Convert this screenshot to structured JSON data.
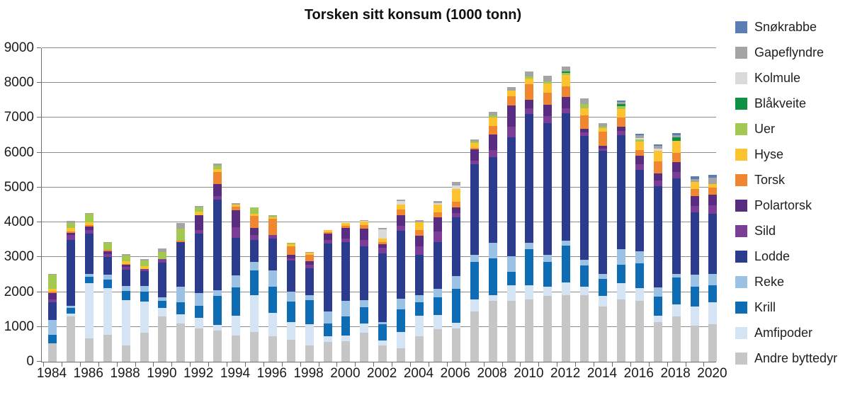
{
  "title": "Torsken sitt konsum (1000 tonn)",
  "chart_data": {
    "type": "bar",
    "stacked": true,
    "title": "Torsken sitt konsum (1000 tonn)",
    "xlabel": "",
    "ylabel": "",
    "ylim": [
      0,
      9000
    ],
    "grid": true,
    "legend_position": "right",
    "yticks": [
      0,
      1000,
      2000,
      3000,
      4000,
      5000,
      6000,
      7000,
      8000,
      9000
    ],
    "xtick_labels": [
      "1984",
      "1986",
      "1988",
      "1990",
      "1992",
      "1994",
      "1996",
      "1998",
      "2000",
      "2002",
      "2004",
      "2006",
      "2008",
      "2010",
      "2012",
      "2014",
      "2016",
      "2018",
      "2020"
    ],
    "categories": [
      1984,
      1985,
      1986,
      1987,
      1988,
      1989,
      1990,
      1991,
      1992,
      1993,
      1994,
      1995,
      1996,
      1997,
      1998,
      1999,
      2000,
      2001,
      2002,
      2003,
      2004,
      2005,
      2006,
      2007,
      2008,
      2009,
      2010,
      2011,
      2012,
      2013,
      2014,
      2015,
      2016,
      2017,
      2018,
      2019,
      2020
    ],
    "series": [
      {
        "name": "Andre byttedyr",
        "color": "#c6c6c6",
        "values": [
          520,
          1300,
          670,
          770,
          460,
          830,
          1300,
          1100,
          950,
          900,
          760,
          860,
          730,
          630,
          460,
          560,
          590,
          830,
          460,
          390,
          730,
          930,
          950,
          1440,
          1745,
          1745,
          1780,
          1880,
          1910,
          1910,
          1575,
          1780,
          1750,
          1130,
          1305,
          1035,
          1070
        ]
      },
      {
        "name": "Amfipoder",
        "color": "#d4e4f5",
        "values": [
          0,
          80,
          1580,
          1350,
          1300,
          890,
          240,
          270,
          320,
          150,
          570,
          1050,
          680,
          510,
          610,
          170,
          170,
          270,
          140,
          470,
          590,
          420,
          160,
          340,
          170,
          440,
          405,
          270,
          370,
          235,
          305,
          470,
          370,
          200,
          340,
          540,
          640
        ]
      },
      {
        "name": "Krill",
        "color": "#0e6cb5",
        "values": [
          250,
          160,
          180,
          230,
          270,
          300,
          200,
          340,
          340,
          850,
          810,
          710,
          740,
          580,
          700,
          370,
          540,
          470,
          470,
          640,
          380,
          490,
          990,
          1080,
          1050,
          405,
          1050,
          710,
          1050,
          610,
          505,
          540,
          710,
          540,
          775,
          575,
          475
        ]
      },
      {
        "name": "Reke",
        "color": "#9bc2e5",
        "values": [
          420,
          60,
          90,
          140,
          140,
          150,
          100,
          440,
          370,
          150,
          340,
          240,
          470,
          300,
          140,
          340,
          440,
          200,
          70,
          300,
          220,
          250,
          360,
          200,
          440,
          440,
          170,
          200,
          135,
          170,
          135,
          440,
          340,
          270,
          100,
          340,
          340
        ]
      },
      {
        "name": "Lodde",
        "color": "#2b3b8e",
        "values": [
          520,
          1900,
          1150,
          510,
          470,
          430,
          1010,
          1280,
          1690,
          2600,
          1080,
          640,
          910,
          880,
          780,
          1960,
          1700,
          1550,
          1960,
          1960,
          1150,
          1340,
          1690,
          2600,
          2460,
          3410,
          3715,
          3785,
          3660,
          3550,
          3540,
          3275,
          2330,
          2905,
          2735,
          1790,
          1725
        ]
      },
      {
        "name": "Sild",
        "color": "#7c3d97",
        "values": [
          70,
          130,
          100,
          80,
          80,
          70,
          100,
          0,
          100,
          100,
          300,
          140,
          100,
          70,
          100,
          100,
          100,
          170,
          170,
          150,
          250,
          300,
          120,
          120,
          220,
          300,
          150,
          200,
          150,
          100,
          60,
          110,
          170,
          150,
          200,
          200,
          240
        ]
      },
      {
        "name": "Polartorsk",
        "color": "#582c80",
        "values": [
          200,
          70,
          120,
          90,
          60,
          0,
          0,
          0,
          440,
          350,
          480,
          200,
          0,
          100,
          100,
          170,
          300,
          340,
          100,
          290,
          300,
          410,
          150,
          320,
          435,
          610,
          255,
          340,
          320,
          100,
          75,
          125,
          235,
          220,
          270,
          275,
          300
        ]
      },
      {
        "name": "Torsk",
        "color": "#f0862f",
        "values": [
          30,
          40,
          40,
          40,
          30,
          0,
          0,
          50,
          0,
          350,
          100,
          340,
          470,
          240,
          170,
          40,
          70,
          100,
          70,
          170,
          160,
          140,
          170,
          40,
          240,
          270,
          440,
          340,
          300,
          405,
          405,
          270,
          170,
          340,
          270,
          200,
          200
        ]
      },
      {
        "name": "Hyse",
        "color": "#fdc32e",
        "values": [
          90,
          100,
          70,
          0,
          70,
          70,
          0,
          0,
          100,
          80,
          70,
          70,
          40,
          70,
          70,
          70,
          70,
          90,
          100,
          140,
          230,
          230,
          370,
          130,
          260,
          170,
          170,
          270,
          340,
          200,
          100,
          235,
          250,
          305,
          340,
          200,
          100
        ]
      },
      {
        "name": "Uer",
        "color": "#a3c84f",
        "values": [
          400,
          150,
          240,
          200,
          170,
          170,
          200,
          340,
          130,
          100,
          0,
          170,
          40,
          30,
          0,
          0,
          0,
          0,
          0,
          0,
          0,
          0,
          0,
          40,
          50,
          0,
          50,
          50,
          50,
          120,
          50,
          100,
          50,
          0,
          0,
          0,
          0
        ]
      },
      {
        "name": "Blåkveite",
        "color": "#0d9144",
        "values": [
          0,
          0,
          0,
          0,
          0,
          0,
          0,
          0,
          0,
          0,
          0,
          0,
          0,
          0,
          0,
          0,
          0,
          0,
          0,
          0,
          0,
          0,
          0,
          0,
          0,
          0,
          0,
          0,
          55,
          0,
          0,
          55,
          0,
          0,
          100,
          0,
          0
        ]
      },
      {
        "name": "Kolmule",
        "color": "#dadada",
        "values": [
          0,
          0,
          0,
          0,
          0,
          0,
          0,
          0,
          0,
          0,
          0,
          0,
          0,
          0,
          0,
          0,
          0,
          30,
          270,
          100,
          0,
          50,
          100,
          0,
          0,
          0,
          0,
          0,
          0,
          0,
          0,
          0,
          50,
          50,
          0,
          0,
          0
        ]
      },
      {
        "name": "Gapeflyndre",
        "color": "#a4a4a4",
        "values": [
          30,
          50,
          30,
          30,
          30,
          30,
          100,
          170,
          40,
          60,
          40,
          0,
          30,
          0,
          30,
          0,
          0,
          20,
          30,
          40,
          50,
          50,
          100,
          60,
          100,
          100,
          155,
          155,
          140,
          150,
          100,
          50,
          80,
          90,
          70,
          80,
          200
        ]
      },
      {
        "name": "Snøkrabbe",
        "color": "#5b7db5",
        "values": [
          0,
          0,
          0,
          0,
          0,
          0,
          0,
          0,
          0,
          0,
          0,
          0,
          0,
          0,
          0,
          0,
          0,
          0,
          0,
          0,
          0,
          0,
          0,
          0,
          0,
          0,
          0,
          0,
          0,
          0,
          0,
          50,
          30,
          40,
          50,
          90,
          70
        ]
      }
    ],
    "legend_entries": [
      "Snøkrabbe",
      "Gapeflyndre",
      "Kolmule",
      "Blåkveite",
      "Uer",
      "Hyse",
      "Torsk",
      "Polartorsk",
      "Sild",
      "Lodde",
      "Reke",
      "Krill",
      "Amfipoder",
      "Andre byttedyr"
    ]
  }
}
